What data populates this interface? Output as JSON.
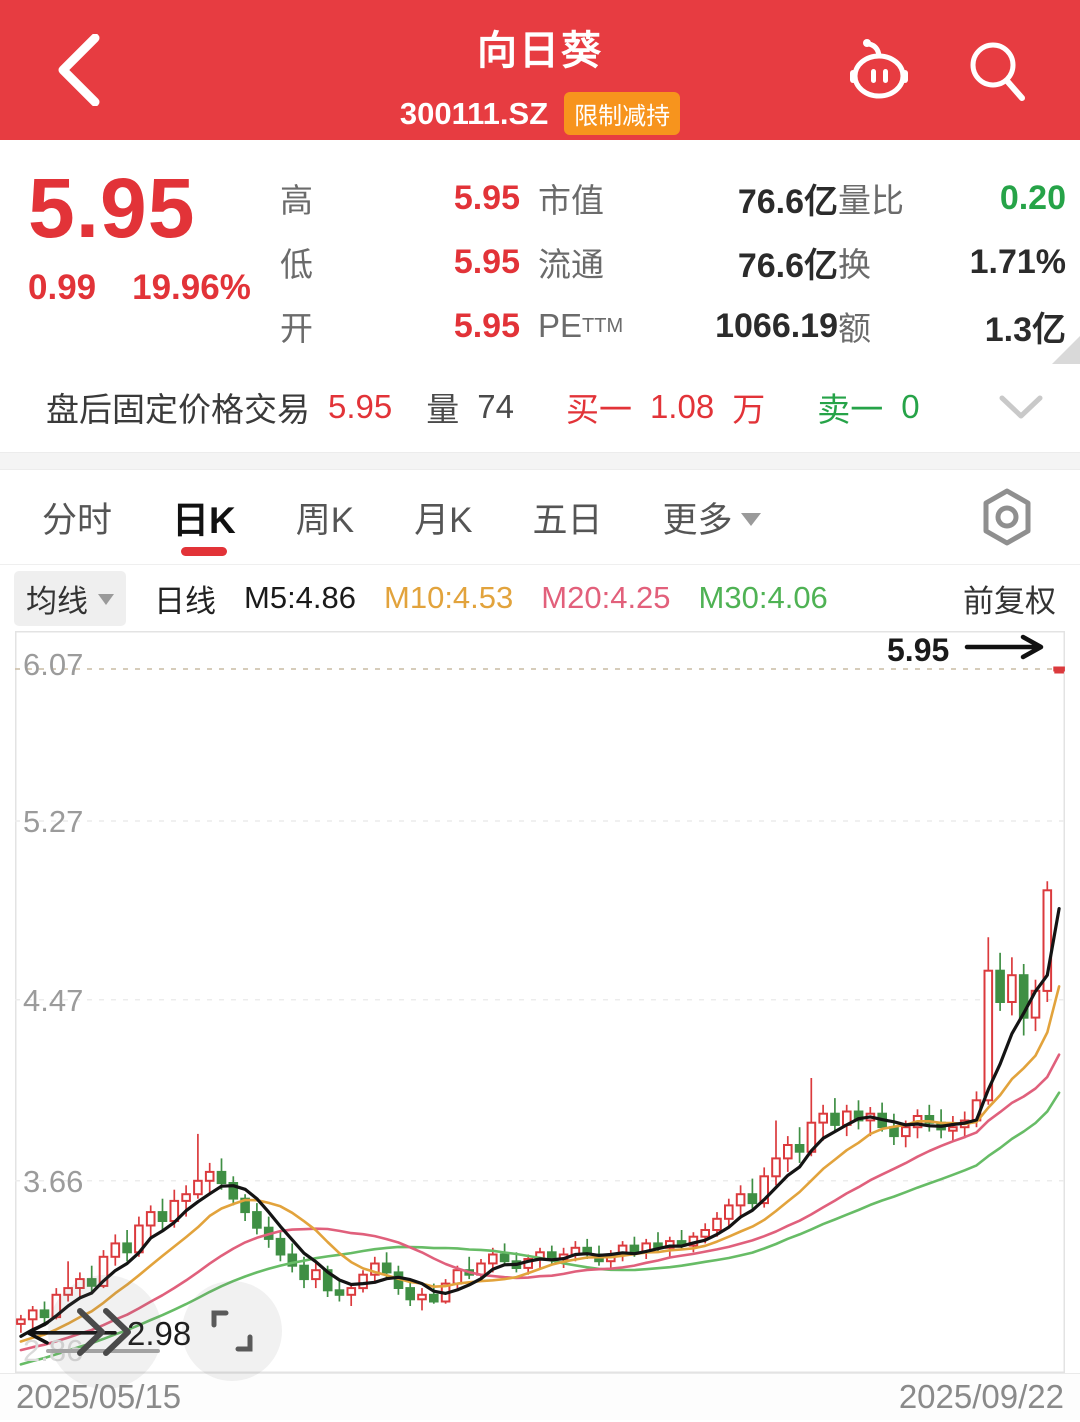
{
  "colors": {
    "accent_red": "#E73C41",
    "text_red": "#E23338",
    "text_green": "#26A348",
    "badge_orange": "#F7941D"
  },
  "header": {
    "title": "向日葵",
    "code": "300111.SZ",
    "badge": "限制减持"
  },
  "quote": {
    "price": "5.95",
    "change": "0.99",
    "change_pct": "19.96%",
    "high": {
      "label": "高",
      "value": "5.95"
    },
    "low": {
      "label": "低",
      "value": "5.95"
    },
    "open": {
      "label": "开",
      "value": "5.95"
    },
    "mcap": {
      "label": "市值",
      "value": "76.6亿"
    },
    "float": {
      "label": "流通",
      "value": "76.6亿"
    },
    "pe": {
      "label": "PE",
      "label_sup": "TTM",
      "value": "1066.19"
    },
    "vol_ratio": {
      "label": "量比",
      "value": "0.20"
    },
    "turnover": {
      "label": "换",
      "value": "1.71%"
    },
    "amount": {
      "label": "额",
      "value": "1.3亿"
    }
  },
  "after_hours": {
    "label": "盘后固定价格交易",
    "price": "5.95",
    "vol_label": "量",
    "vol": "74",
    "bid_label": "买一",
    "bid": "1.08",
    "bid_unit": "万",
    "ask_label": "卖一",
    "ask": "0"
  },
  "tabs": {
    "items": [
      "分时",
      "日K",
      "周K",
      "月K",
      "五日"
    ],
    "more": "更多",
    "active": "日K"
  },
  "ma_bar": {
    "avg_label": "均线",
    "mode": "日线",
    "m5": "M5:4.86",
    "m10": "M10:4.53",
    "m20": "M20:4.25",
    "m30": "M30:4.06",
    "adjust": "前复权"
  },
  "chart_data": {
    "type": "candlestick",
    "title": "向日葵 300111.SZ 日K 前复权",
    "x_start_label": "2025/05/15",
    "x_end_label": "2025/09/22",
    "y_ticks": [
      6.07,
      5.27,
      4.47,
      3.66,
      2.86
    ],
    "y_range": [
      2.8,
      6.12
    ],
    "grid": "dashed-horizontal",
    "current_price": 5.95,
    "current_price_label": "5.95",
    "low_marker": {
      "value": 2.98,
      "label": "2.98"
    },
    "up_color": "#DB3A3D",
    "down_color": "#3F8F44",
    "ma": [
      {
        "name": "M5",
        "period": 5,
        "value": 4.86,
        "color": "#141414"
      },
      {
        "name": "M10",
        "period": 10,
        "value": 4.53,
        "color": "#E2A33C"
      },
      {
        "name": "M20",
        "period": 20,
        "value": 4.25,
        "color": "#E0607C"
      },
      {
        "name": "M30",
        "period": 30,
        "value": 4.06,
        "color": "#67BC66"
      }
    ],
    "ma_seed_closes": [
      2.6,
      2.62,
      2.64,
      2.66,
      2.68,
      2.7,
      2.72,
      2.74,
      2.76,
      2.78,
      2.8,
      2.82,
      2.83,
      2.84,
      2.85,
      2.86,
      2.87,
      2.88,
      2.89,
      2.9,
      2.9,
      2.91,
      2.91,
      2.92,
      2.92,
      2.93,
      2.93,
      2.94,
      2.95,
      2.96
    ],
    "candles": [
      [
        3.02,
        3.06,
        2.98,
        3.04
      ],
      [
        3.04,
        3.1,
        3.0,
        3.08
      ],
      [
        3.08,
        3.12,
        3.02,
        3.05
      ],
      [
        3.05,
        3.18,
        3.04,
        3.15
      ],
      [
        3.15,
        3.3,
        3.12,
        3.18
      ],
      [
        3.18,
        3.25,
        3.14,
        3.22
      ],
      [
        3.22,
        3.28,
        3.16,
        3.19
      ],
      [
        3.19,
        3.35,
        3.18,
        3.32
      ],
      [
        3.32,
        3.42,
        3.28,
        3.38
      ],
      [
        3.38,
        3.44,
        3.3,
        3.34
      ],
      [
        3.34,
        3.5,
        3.32,
        3.46
      ],
      [
        3.46,
        3.55,
        3.4,
        3.52
      ],
      [
        3.52,
        3.58,
        3.44,
        3.48
      ],
      [
        3.48,
        3.62,
        3.45,
        3.57
      ],
      [
        3.57,
        3.64,
        3.5,
        3.6
      ],
      [
        3.6,
        3.87,
        3.58,
        3.66
      ],
      [
        3.66,
        3.74,
        3.6,
        3.7
      ],
      [
        3.7,
        3.76,
        3.62,
        3.65
      ],
      [
        3.65,
        3.68,
        3.55,
        3.58
      ],
      [
        3.58,
        3.6,
        3.48,
        3.52
      ],
      [
        3.52,
        3.56,
        3.42,
        3.45
      ],
      [
        3.45,
        3.5,
        3.36,
        3.4
      ],
      [
        3.4,
        3.44,
        3.3,
        3.33
      ],
      [
        3.33,
        3.38,
        3.25,
        3.28
      ],
      [
        3.28,
        3.32,
        3.18,
        3.22
      ],
      [
        3.22,
        3.3,
        3.18,
        3.26
      ],
      [
        3.26,
        3.28,
        3.14,
        3.17
      ],
      [
        3.17,
        3.22,
        3.12,
        3.15
      ],
      [
        3.15,
        3.2,
        3.1,
        3.18
      ],
      [
        3.18,
        3.26,
        3.16,
        3.24
      ],
      [
        3.24,
        3.32,
        3.21,
        3.29
      ],
      [
        3.29,
        3.34,
        3.22,
        3.25
      ],
      [
        3.25,
        3.28,
        3.15,
        3.18
      ],
      [
        3.18,
        3.22,
        3.1,
        3.13
      ],
      [
        3.13,
        3.18,
        3.08,
        3.15
      ],
      [
        3.15,
        3.2,
        3.11,
        3.12
      ],
      [
        3.12,
        3.22,
        3.11,
        3.2
      ],
      [
        3.2,
        3.28,
        3.17,
        3.26
      ],
      [
        3.26,
        3.32,
        3.22,
        3.24
      ],
      [
        3.24,
        3.31,
        3.21,
        3.29
      ],
      [
        3.29,
        3.36,
        3.25,
        3.33
      ],
      [
        3.33,
        3.38,
        3.28,
        3.3
      ],
      [
        3.3,
        3.34,
        3.25,
        3.27
      ],
      [
        3.27,
        3.33,
        3.24,
        3.31
      ],
      [
        3.31,
        3.36,
        3.27,
        3.34
      ],
      [
        3.34,
        3.37,
        3.29,
        3.31
      ],
      [
        3.31,
        3.36,
        3.27,
        3.33
      ],
      [
        3.33,
        3.39,
        3.3,
        3.36
      ],
      [
        3.36,
        3.4,
        3.31,
        3.33
      ],
      [
        3.33,
        3.37,
        3.28,
        3.3
      ],
      [
        3.3,
        3.35,
        3.26,
        3.33
      ],
      [
        3.33,
        3.39,
        3.3,
        3.37
      ],
      [
        3.37,
        3.41,
        3.32,
        3.34
      ],
      [
        3.34,
        3.4,
        3.31,
        3.38
      ],
      [
        3.38,
        3.43,
        3.34,
        3.36
      ],
      [
        3.36,
        3.41,
        3.32,
        3.39
      ],
      [
        3.39,
        3.44,
        3.35,
        3.37
      ],
      [
        3.37,
        3.43,
        3.34,
        3.41
      ],
      [
        3.41,
        3.47,
        3.38,
        3.44
      ],
      [
        3.44,
        3.52,
        3.41,
        3.49
      ],
      [
        3.49,
        3.58,
        3.45,
        3.55
      ],
      [
        3.55,
        3.64,
        3.5,
        3.6
      ],
      [
        3.6,
        3.67,
        3.53,
        3.56
      ],
      [
        3.56,
        3.72,
        3.54,
        3.68
      ],
      [
        3.68,
        3.93,
        3.64,
        3.76
      ],
      [
        3.76,
        3.86,
        3.7,
        3.82
      ],
      [
        3.82,
        3.9,
        3.74,
        3.79
      ],
      [
        3.79,
        4.12,
        3.77,
        3.92
      ],
      [
        3.92,
        4.0,
        3.84,
        3.96
      ],
      [
        3.96,
        4.03,
        3.88,
        3.91
      ],
      [
        3.91,
        4.0,
        3.86,
        3.97
      ],
      [
        3.97,
        4.02,
        3.89,
        3.93
      ],
      [
        3.93,
        3.99,
        3.86,
        3.96
      ],
      [
        3.96,
        4.01,
        3.88,
        3.9
      ],
      [
        3.9,
        3.96,
        3.82,
        3.86
      ],
      [
        3.86,
        3.93,
        3.81,
        3.9
      ],
      [
        3.9,
        3.98,
        3.85,
        3.95
      ],
      [
        3.95,
        4.0,
        3.88,
        3.92
      ],
      [
        3.92,
        3.98,
        3.85,
        3.89
      ],
      [
        3.89,
        3.95,
        3.84,
        3.9
      ],
      [
        3.9,
        3.97,
        3.85,
        3.93
      ],
      [
        3.93,
        4.06,
        3.9,
        4.02
      ],
      [
        4.02,
        4.75,
        4.0,
        4.6
      ],
      [
        4.6,
        4.68,
        4.42,
        4.46
      ],
      [
        4.46,
        4.66,
        4.4,
        4.58
      ],
      [
        4.58,
        4.63,
        4.31,
        4.39
      ],
      [
        4.39,
        4.56,
        4.33,
        4.51
      ],
      [
        4.51,
        5.0,
        4.46,
        4.96
      ],
      [
        5.95,
        5.95,
        5.95,
        5.95
      ]
    ]
  }
}
